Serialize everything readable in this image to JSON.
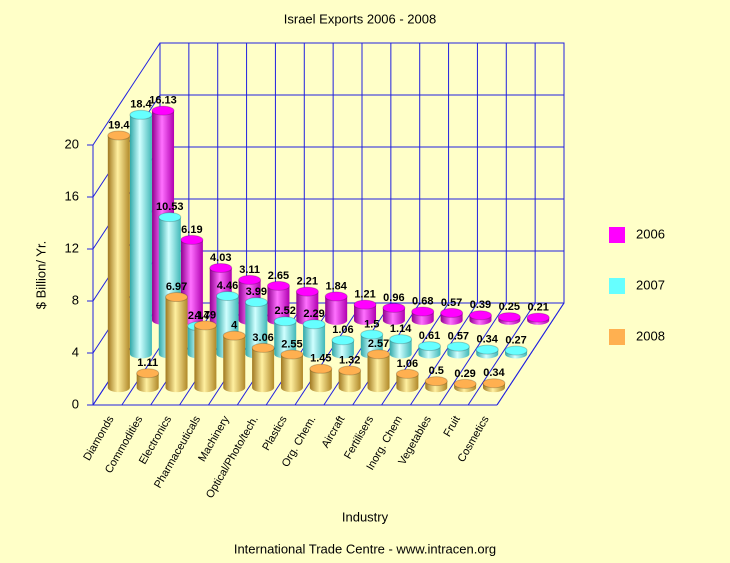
{
  "chart_data": {
    "type": "bar3d",
    "title": "Israel Exports  2006 - 2008",
    "ylabel": "$ Billion/ Yr.",
    "xlabel": "Industry",
    "source": "International Trade Centre -  www.intracen.org",
    "categories": [
      "Diamonds",
      "Commodities",
      "Electronics",
      "Pharmaceuticals",
      "Machinery",
      "Optical/Photo/tech.",
      "Plastics",
      "Org. Chem.",
      "Aircraft",
      "Fertilisers",
      "Inorg. Chem",
      "Vegetables",
      "Fruit",
      "Cosmetics"
    ],
    "series": [
      {
        "name": "2006",
        "color": "#ff00ff",
        "values": [
          16.13,
          6.19,
          4.03,
          3.11,
          2.65,
          2.21,
          1.84,
          1.21,
          0.96,
          0.68,
          0.57,
          0.39,
          0.25,
          0.21
        ]
      },
      {
        "name": "2007",
        "color": "#66ffff",
        "values": [
          18.4,
          10.53,
          2.14,
          4.46,
          3.99,
          2.52,
          2.29,
          1.06,
          1.5,
          1.14,
          0.61,
          0.57,
          0.34,
          0.27
        ]
      },
      {
        "name": "2008",
        "color": "#ffb050",
        "values": [
          19.4,
          1.11,
          6.97,
          4.79,
          4,
          3.06,
          2.55,
          1.45,
          1.32,
          2.57,
          1.06,
          0.5,
          0.29,
          0.34
        ]
      }
    ],
    "ylim": [
      0,
      20
    ],
    "yticks": [
      0,
      4,
      8,
      12,
      16,
      20
    ],
    "grid": true,
    "legend": "right"
  }
}
